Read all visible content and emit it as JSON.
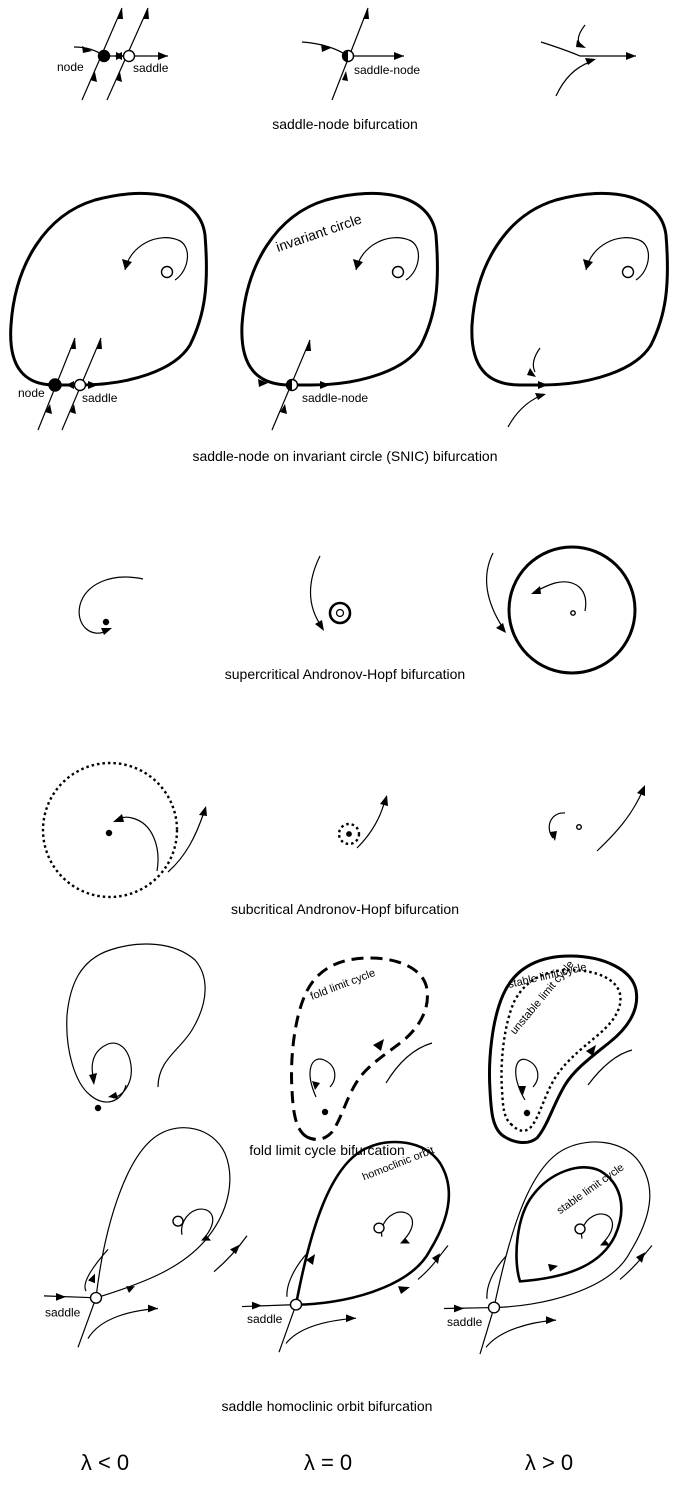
{
  "rows": {
    "saddle_node": {
      "caption": "saddle-node bifurcation",
      "labels": {
        "node": "node",
        "saddle": "saddle",
        "saddle_node": "saddle-node"
      }
    },
    "snic": {
      "caption": "saddle-node on invariant circle (SNIC) bifurcation",
      "labels": {
        "invariant_circle": "invariant circle",
        "node": "node",
        "saddle": "saddle",
        "saddle_node": "saddle-node"
      }
    },
    "supercritical_hopf": {
      "caption": "supercritical Andronov-Hopf bifurcation"
    },
    "subcritical_hopf": {
      "caption": "subcritical Andronov-Hopf bifurcation"
    },
    "fold_limit_cycle": {
      "caption": "fold limit cycle bifurcation",
      "labels": {
        "fold_limit_cycle": "fold limit cycle",
        "stable_limit_cycle": "stable limit cycle",
        "unstable_limit_cycle": "unstable limit cycle"
      }
    },
    "homoclinic": {
      "caption": "saddle homoclinic orbit bifurcation",
      "labels": {
        "saddle": "saddle",
        "homoclinic_orbit": "homoclinic orbit",
        "stable_limit_cycle": "stable limit cycle"
      }
    }
  },
  "columns": [
    "λ < 0",
    "λ = 0",
    "λ > 0"
  ]
}
